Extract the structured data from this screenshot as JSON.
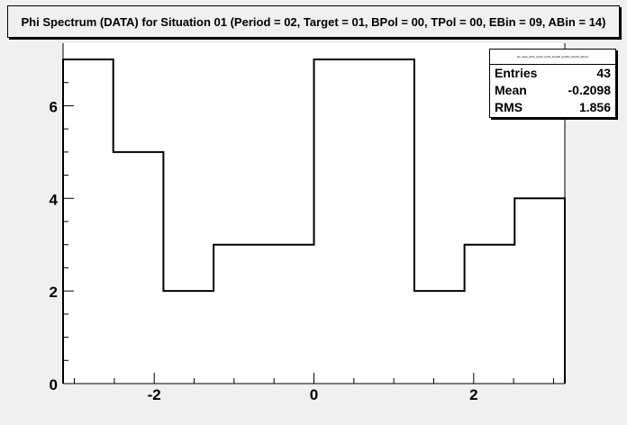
{
  "title": "Phi Spectrum (DATA) for Situation 01 (Period = 02, Target = 01, BPol = 00, TPol = 00, EBin = 09, ABin = 14)",
  "stats": {
    "name": "phi_data_sit01_per02_tar01_bpol00_tpol00_ebin09_abin14",
    "entries_label": "Entries",
    "entries": "43",
    "mean_label": "Mean",
    "mean": "-0.2098",
    "rms_label": "RMS",
    "rms": "1.856"
  },
  "chart_data": {
    "type": "bar",
    "bin_edges": [
      -3.1416,
      -2.5133,
      -1.885,
      -1.2566,
      -0.6283,
      0.0,
      0.6283,
      1.2566,
      1.885,
      2.5133,
      3.1416
    ],
    "values": [
      7,
      5,
      2,
      3,
      3,
      7,
      7,
      2,
      3,
      4
    ],
    "xlim": [
      -3.1416,
      3.1416
    ],
    "ylim": [
      0,
      7.35
    ],
    "x_ticks": [
      -2,
      0,
      2
    ],
    "x_tick_labels": [
      "-2",
      "0",
      "2"
    ],
    "y_ticks": [
      0,
      2,
      4,
      6
    ],
    "y_tick_labels": [
      "0",
      "2",
      "4",
      "6"
    ],
    "grid": false,
    "legend": "top-right",
    "colors": {
      "line": "#000000",
      "fill": "#ffffff",
      "frame": "#f0f0f0"
    }
  }
}
